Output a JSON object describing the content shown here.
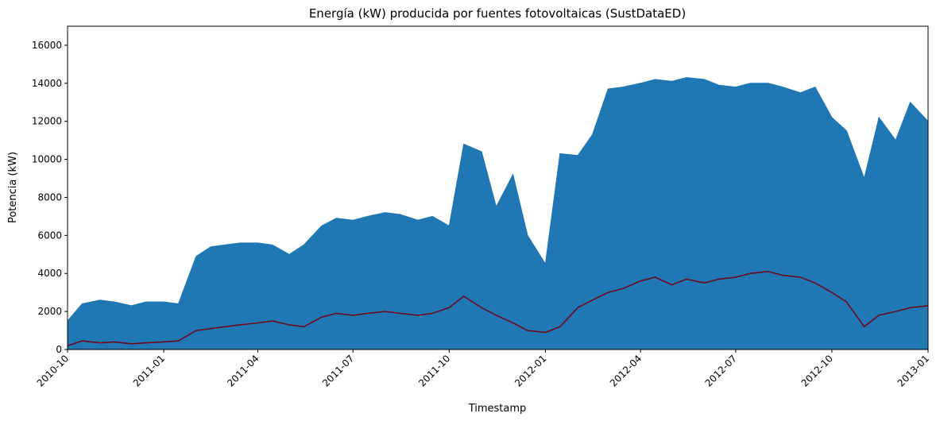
{
  "chart_data": {
    "type": "line",
    "title": "Energía (kW) producida por fuentes fotovoltaicas (SustDataED)",
    "xlabel": "Timestamp",
    "ylabel": "Potencia (kW)",
    "xlim": [
      "2010-10-01",
      "2013-01-01"
    ],
    "ylim": [
      0,
      17000
    ],
    "x_ticks": [
      "2010-10",
      "2011-01",
      "2011-04",
      "2011-07",
      "2011-10",
      "2012-01",
      "2012-04",
      "2012-07",
      "2012-10",
      "2013-01"
    ],
    "y_ticks": [
      0,
      2000,
      4000,
      6000,
      8000,
      10000,
      12000,
      14000,
      16000
    ],
    "grid": false,
    "series": [
      {
        "role": "raw-measurements",
        "color": "#1f77b4",
        "x": [
          "2010-10-01",
          "2010-10-15",
          "2010-11-01",
          "2010-11-15",
          "2010-12-01",
          "2010-12-15",
          "2011-01-01",
          "2011-01-15",
          "2011-02-01",
          "2011-02-15",
          "2011-03-01",
          "2011-03-15",
          "2011-04-01",
          "2011-04-15",
          "2011-05-01",
          "2011-05-15",
          "2011-06-01",
          "2011-06-15",
          "2011-07-01",
          "2011-07-15",
          "2011-08-01",
          "2011-08-15",
          "2011-09-01",
          "2011-09-15",
          "2011-10-01",
          "2011-10-15",
          "2011-11-01",
          "2011-11-15",
          "2011-12-01",
          "2011-12-15",
          "2012-01-01",
          "2012-01-15",
          "2012-02-01",
          "2012-02-15",
          "2012-03-01",
          "2012-03-15",
          "2012-04-01",
          "2012-04-15",
          "2012-05-01",
          "2012-05-15",
          "2012-06-01",
          "2012-06-15",
          "2012-07-01",
          "2012-07-15",
          "2012-08-01",
          "2012-08-15",
          "2012-09-01",
          "2012-09-15",
          "2012-10-01",
          "2012-10-15",
          "2012-11-01",
          "2012-11-15",
          "2012-12-01",
          "2012-12-15",
          "2013-01-01"
        ],
        "y": [
          1500,
          2400,
          2600,
          2500,
          2300,
          2500,
          2500,
          2400,
          4900,
          5400,
          5500,
          5600,
          5600,
          5500,
          5000,
          5500,
          6500,
          6900,
          6800,
          7000,
          7200,
          7100,
          6800,
          7000,
          6500,
          10800,
          10400,
          7500,
          9200,
          6000,
          4500,
          10300,
          10200,
          11300,
          13700,
          13800,
          14000,
          14200,
          14100,
          14300,
          14200,
          13900,
          13800,
          14000,
          14000,
          13800,
          13500,
          13800,
          12200,
          11500,
          9000,
          12200,
          11000,
          13000,
          12000
        ],
        "y_min": 0
      },
      {
        "role": "daily-mean",
        "color": "#6b0a1e",
        "x": [
          "2010-10-01",
          "2010-10-15",
          "2010-11-01",
          "2010-11-15",
          "2010-12-01",
          "2010-12-15",
          "2011-01-01",
          "2011-01-15",
          "2011-02-01",
          "2011-02-15",
          "2011-03-01",
          "2011-03-15",
          "2011-04-01",
          "2011-04-15",
          "2011-05-01",
          "2011-05-15",
          "2011-06-01",
          "2011-06-15",
          "2011-07-01",
          "2011-07-15",
          "2011-08-01",
          "2011-08-15",
          "2011-09-01",
          "2011-09-15",
          "2011-10-01",
          "2011-10-15",
          "2011-11-01",
          "2011-11-15",
          "2011-12-01",
          "2011-12-15",
          "2012-01-01",
          "2012-01-15",
          "2012-02-01",
          "2012-02-15",
          "2012-03-01",
          "2012-03-15",
          "2012-04-01",
          "2012-04-15",
          "2012-05-01",
          "2012-05-15",
          "2012-06-01",
          "2012-06-15",
          "2012-07-01",
          "2012-07-15",
          "2012-08-01",
          "2012-08-15",
          "2012-09-01",
          "2012-09-15",
          "2012-10-01",
          "2012-10-15",
          "2012-11-01",
          "2012-11-15",
          "2012-12-01",
          "2012-12-15",
          "2013-01-01"
        ],
        "y": [
          200,
          450,
          350,
          400,
          300,
          350,
          400,
          450,
          1000,
          1100,
          1200,
          1300,
          1400,
          1500,
          1300,
          1200,
          1700,
          1900,
          1800,
          1900,
          2000,
          1900,
          1800,
          1900,
          2200,
          2800,
          2200,
          1800,
          1400,
          1000,
          900,
          1200,
          2200,
          2600,
          3000,
          3200,
          3600,
          3800,
          3400,
          3700,
          3500,
          3700,
          3800,
          4000,
          4100,
          3900,
          3800,
          3500,
          3000,
          2500,
          1200,
          1800,
          2000,
          2200,
          2300
        ]
      }
    ]
  }
}
